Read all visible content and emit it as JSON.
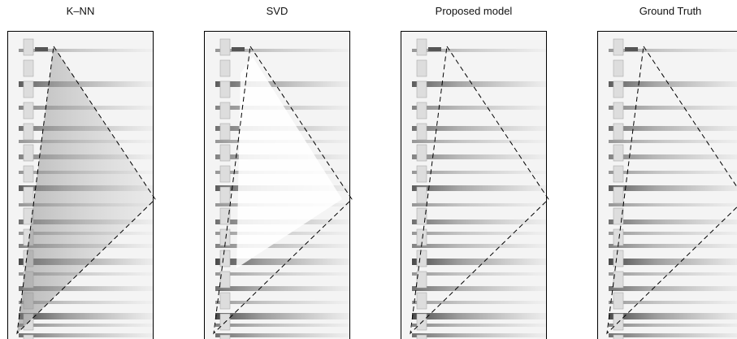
{
  "panels": [
    {
      "title": "K–NN"
    },
    {
      "title": "SVD"
    },
    {
      "title": "Proposed model"
    },
    {
      "title": "Ground Truth"
    }
  ]
}
